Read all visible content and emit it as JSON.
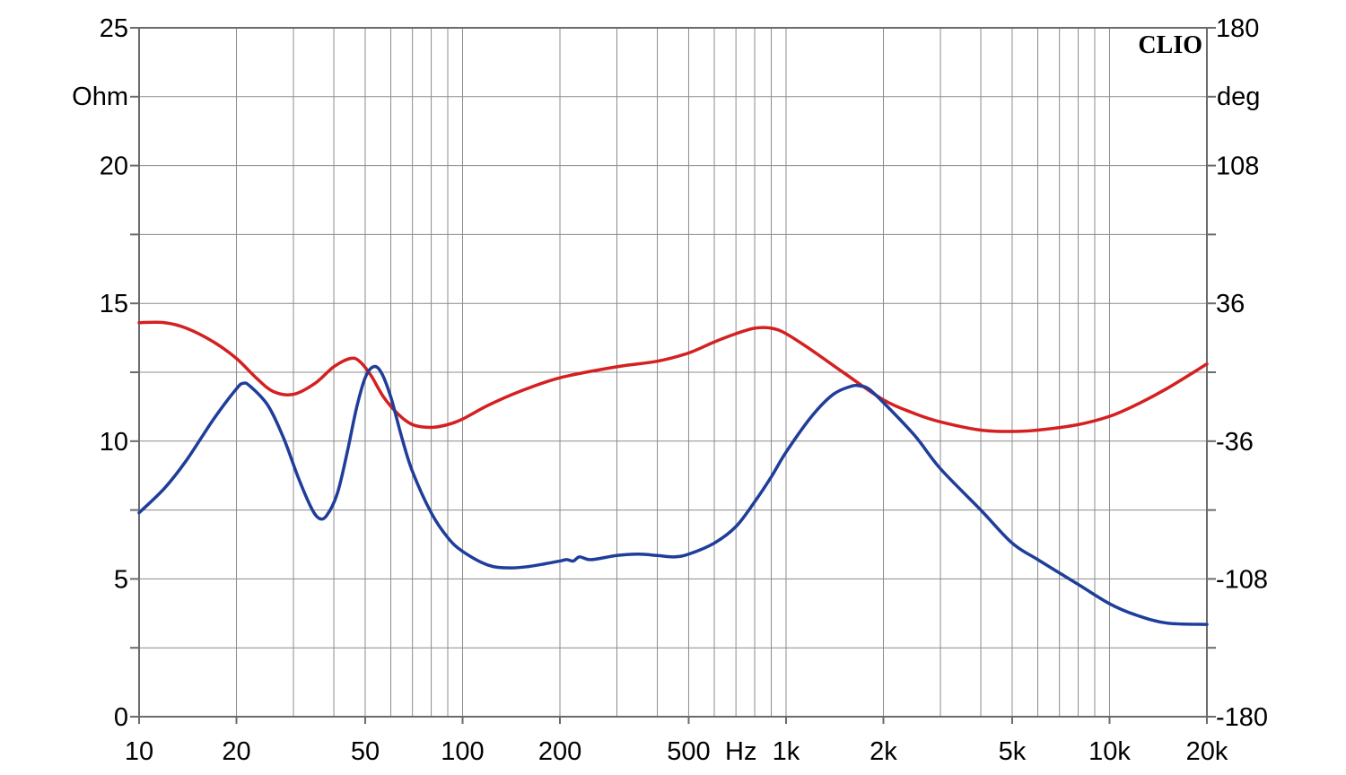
{
  "chart_data": {
    "type": "line",
    "brand": "CLIO",
    "x_scale": "log",
    "xlim": [
      10,
      20000
    ],
    "x_ticks": [
      {
        "value": 10,
        "label": "10"
      },
      {
        "value": 20,
        "label": "20"
      },
      {
        "value": 50,
        "label": "50"
      },
      {
        "value": 100,
        "label": "100"
      },
      {
        "value": 200,
        "label": "200"
      },
      {
        "value": 500,
        "label": "500"
      },
      {
        "value": 1000,
        "label": "1k"
      },
      {
        "value": 2000,
        "label": "2k"
      },
      {
        "value": 5000,
        "label": "5k"
      },
      {
        "value": 10000,
        "label": "10k"
      },
      {
        "value": 20000,
        "label": "20k"
      }
    ],
    "x_unit": "Hz",
    "left_axis": {
      "unit": "Ohm",
      "ylim": [
        0,
        25
      ],
      "ticks": [
        {
          "value": 0,
          "label": "0"
        },
        {
          "value": 5,
          "label": "5"
        },
        {
          "value": 10,
          "label": "10"
        },
        {
          "value": 15,
          "label": "15"
        },
        {
          "value": 20,
          "label": "20"
        },
        {
          "value": 25,
          "label": "25"
        }
      ]
    },
    "right_axis": {
      "unit": "deg",
      "ylim": [
        -180,
        180
      ],
      "ticks": [
        {
          "value": -180,
          "label": "-180"
        },
        {
          "value": -108,
          "label": "-108"
        },
        {
          "value": -36,
          "label": "-36"
        },
        {
          "value": 36,
          "label": "36"
        },
        {
          "value": 108,
          "label": "108"
        },
        {
          "value": 180,
          "label": "180"
        }
      ]
    },
    "grid": true,
    "series": [
      {
        "axis": "left",
        "color": "#d42020",
        "points": [
          [
            10,
            14.3
          ],
          [
            12,
            14.3
          ],
          [
            14,
            14.1
          ],
          [
            17,
            13.6
          ],
          [
            20,
            13.0
          ],
          [
            23,
            12.3
          ],
          [
            26,
            11.8
          ],
          [
            30,
            11.7
          ],
          [
            35,
            12.1
          ],
          [
            40,
            12.7
          ],
          [
            45,
            13.0
          ],
          [
            48,
            12.9
          ],
          [
            52,
            12.4
          ],
          [
            57,
            11.6
          ],
          [
            63,
            11.0
          ],
          [
            70,
            10.6
          ],
          [
            80,
            10.5
          ],
          [
            90,
            10.6
          ],
          [
            100,
            10.8
          ],
          [
            120,
            11.3
          ],
          [
            150,
            11.8
          ],
          [
            200,
            12.3
          ],
          [
            300,
            12.7
          ],
          [
            400,
            12.9
          ],
          [
            500,
            13.2
          ],
          [
            600,
            13.6
          ],
          [
            700,
            13.9
          ],
          [
            800,
            14.1
          ],
          [
            900,
            14.1
          ],
          [
            1000,
            13.9
          ],
          [
            1200,
            13.3
          ],
          [
            1500,
            12.5
          ],
          [
            2000,
            11.5
          ],
          [
            2500,
            11.0
          ],
          [
            3000,
            10.7
          ],
          [
            4000,
            10.4
          ],
          [
            5000,
            10.35
          ],
          [
            6000,
            10.4
          ],
          [
            8000,
            10.6
          ],
          [
            10000,
            10.9
          ],
          [
            12000,
            11.3
          ],
          [
            15000,
            11.9
          ],
          [
            20000,
            12.8
          ]
        ]
      },
      {
        "axis": "left",
        "color": "#1f3d9a",
        "points": [
          [
            10,
            7.4
          ],
          [
            12,
            8.3
          ],
          [
            14,
            9.3
          ],
          [
            17,
            10.8
          ],
          [
            20,
            11.9
          ],
          [
            21,
            12.1
          ],
          [
            22,
            12.0
          ],
          [
            25,
            11.3
          ],
          [
            28,
            10.1
          ],
          [
            31,
            8.7
          ],
          [
            34,
            7.6
          ],
          [
            36,
            7.2
          ],
          [
            38,
            7.3
          ],
          [
            41,
            8.1
          ],
          [
            44,
            9.6
          ],
          [
            47,
            11.2
          ],
          [
            50,
            12.3
          ],
          [
            53,
            12.7
          ],
          [
            56,
            12.5
          ],
          [
            60,
            11.6
          ],
          [
            65,
            10.1
          ],
          [
            70,
            8.9
          ],
          [
            80,
            7.4
          ],
          [
            90,
            6.5
          ],
          [
            100,
            6.0
          ],
          [
            120,
            5.5
          ],
          [
            140,
            5.4
          ],
          [
            160,
            5.45
          ],
          [
            180,
            5.55
          ],
          [
            200,
            5.65
          ],
          [
            210,
            5.7
          ],
          [
            220,
            5.65
          ],
          [
            230,
            5.8
          ],
          [
            250,
            5.7
          ],
          [
            300,
            5.85
          ],
          [
            350,
            5.9
          ],
          [
            400,
            5.85
          ],
          [
            450,
            5.8
          ],
          [
            500,
            5.9
          ],
          [
            600,
            6.3
          ],
          [
            700,
            6.9
          ],
          [
            800,
            7.8
          ],
          [
            900,
            8.7
          ],
          [
            1000,
            9.6
          ],
          [
            1200,
            10.9
          ],
          [
            1400,
            11.7
          ],
          [
            1600,
            12.0
          ],
          [
            1700,
            12.0
          ],
          [
            1800,
            11.9
          ],
          [
            2000,
            11.4
          ],
          [
            2500,
            10.2
          ],
          [
            3000,
            9.0
          ],
          [
            4000,
            7.5
          ],
          [
            5000,
            6.3
          ],
          [
            6000,
            5.7
          ],
          [
            8000,
            4.8
          ],
          [
            10000,
            4.1
          ],
          [
            12000,
            3.7
          ],
          [
            15000,
            3.4
          ],
          [
            20000,
            3.35
          ]
        ]
      }
    ]
  }
}
